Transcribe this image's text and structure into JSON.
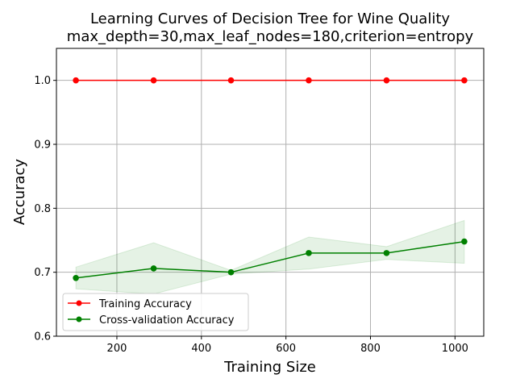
{
  "chart_data": {
    "type": "line",
    "title": "Learning Curves of Decision Tree for Wine Quality",
    "subtitle": "max_depth=30,max_leaf_nodes=180,criterion=entropy",
    "xlabel": "Training Size",
    "ylabel": "Accuracy",
    "xlim": [
      57,
      1068
    ],
    "ylim": [
      0.6,
      1.05
    ],
    "xticks": [
      200,
      400,
      600,
      800,
      1000
    ],
    "yticks": [
      0.6,
      0.7,
      0.8,
      0.9,
      1.0
    ],
    "xtick_labels": [
      "200",
      "400",
      "600",
      "800",
      "1000"
    ],
    "ytick_labels": [
      "0.6",
      "0.7",
      "0.8",
      "0.9",
      "1.0"
    ],
    "grid": true,
    "legend_position": "lower-left",
    "x": [
      103,
      287,
      470,
      654,
      838,
      1022
    ],
    "series": [
      {
        "name": "Training Accuracy",
        "color": "#ff0000",
        "values": [
          1.0,
          1.0,
          1.0,
          1.0,
          1.0,
          1.0
        ],
        "band_lower": [
          1.0,
          1.0,
          1.0,
          1.0,
          1.0,
          1.0
        ],
        "band_upper": [
          1.0,
          1.0,
          1.0,
          1.0,
          1.0,
          1.0
        ]
      },
      {
        "name": "Cross-validation Accuracy",
        "color": "#008000",
        "values": [
          0.691,
          0.706,
          0.7,
          0.73,
          0.73,
          0.748
        ],
        "band_lower": [
          0.674,
          0.666,
          0.697,
          0.705,
          0.72,
          0.714
        ],
        "band_upper": [
          0.708,
          0.746,
          0.703,
          0.755,
          0.74,
          0.781
        ]
      }
    ]
  }
}
